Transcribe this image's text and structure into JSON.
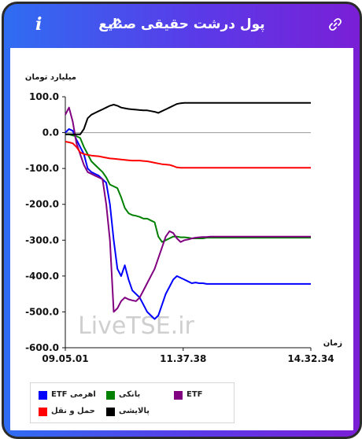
{
  "header": {
    "title": "پول درشت حقیقی صنایع",
    "info_label": "i"
  },
  "chart_data": {
    "type": "line",
    "ylabel": "میلیارد تومان",
    "xlabel": "زمان",
    "watermark": "LiveTSE.ir",
    "ylim": [
      -600,
      100
    ],
    "yticks": [
      100,
      0,
      -100,
      -200,
      -300,
      -400,
      -500,
      -600
    ],
    "ytick_labels": [
      "100.0",
      "0.0",
      "-100.0",
      "-200.0",
      "-300.0",
      "-400.0",
      "-500.0",
      "-600.0"
    ],
    "xlim": [
      "09.05.01",
      "14.32.34"
    ],
    "xticks": [
      "09.05.01",
      "11.37.38",
      "14.32.34"
    ],
    "x": [
      "09.05",
      "09.10",
      "09.15",
      "09.20",
      "09.25",
      "09.30",
      "09.35",
      "09.40",
      "09.45",
      "09.50",
      "09.55",
      "10.00",
      "10.05",
      "10.10",
      "10.15",
      "10.20",
      "10.25",
      "10.30",
      "10.35",
      "10.40",
      "10.45",
      "10.50",
      "10.55",
      "11.00",
      "11.05",
      "11.10",
      "11.15",
      "11.20",
      "11.25",
      "11.30",
      "11.35",
      "11.40",
      "11.45",
      "11.50",
      "11.55",
      "12.00",
      "12.05",
      "12.10",
      "12.15",
      "12.20",
      "12.25",
      "12.30",
      "12.35",
      "12.40",
      "12.45",
      "12.50",
      "12.55",
      "13.00",
      "13.05",
      "13.10",
      "13.15",
      "13.20",
      "13.25",
      "13.30",
      "13.35",
      "13.40",
      "13.45",
      "13.50",
      "13.55",
      "14.00",
      "14.05",
      "14.10",
      "14.15",
      "14.20",
      "14.25",
      "14.30",
      "14.32"
    ],
    "series": [
      {
        "name": "ETF اهرمی",
        "color": "#0000ff",
        "values": [
          0,
          10,
          5,
          -20,
          -40,
          -60,
          -100,
          -110,
          -115,
          -120,
          -130,
          -140,
          -200,
          -300,
          -380,
          -400,
          -370,
          -410,
          -440,
          -450,
          -460,
          -480,
          -500,
          -510,
          -520,
          -510,
          -480,
          -450,
          -430,
          -410,
          -400,
          -405,
          -410,
          -415,
          -420,
          -418,
          -420,
          -420,
          -422,
          -422,
          -422,
          -422,
          -422,
          -422,
          -422,
          -422,
          -422,
          -422,
          -422,
          -422,
          -422,
          -422,
          -422,
          -422,
          -422,
          -422,
          -422,
          -422,
          -422,
          -422,
          -422,
          -422,
          -422,
          -422,
          -422,
          -422,
          -422
        ]
      },
      {
        "name": "بانکی",
        "color": "#008000",
        "values": [
          -5,
          -5,
          -8,
          -10,
          -15,
          -40,
          -60,
          -80,
          -90,
          -100,
          -110,
          -125,
          -145,
          -150,
          -155,
          -180,
          -210,
          -225,
          -230,
          -232,
          -235,
          -240,
          -240,
          -245,
          -250,
          -290,
          -305,
          -300,
          -295,
          -290,
          -290,
          -292,
          -292,
          -293,
          -295,
          -295,
          -295,
          -295,
          -293,
          -293,
          -293,
          -293,
          -293,
          -293,
          -293,
          -293,
          -293,
          -293,
          -293,
          -293,
          -293,
          -293,
          -293,
          -293,
          -293,
          -293,
          -293,
          -293,
          -293,
          -293,
          -293,
          -293,
          -293,
          -293,
          -293,
          -293,
          -293
        ]
      },
      {
        "name": "ETF",
        "color": "#800080",
        "values": [
          50,
          70,
          30,
          -30,
          -60,
          -90,
          -110,
          -115,
          -120,
          -125,
          -130,
          -200,
          -300,
          -500,
          -490,
          -470,
          -460,
          -465,
          -468,
          -470,
          -460,
          -440,
          -420,
          -400,
          -380,
          -350,
          -320,
          -290,
          -275,
          -280,
          -295,
          -305,
          -300,
          -298,
          -295,
          -293,
          -292,
          -291,
          -291,
          -290,
          -290,
          -290,
          -290,
          -290,
          -290,
          -290,
          -290,
          -290,
          -290,
          -290,
          -290,
          -290,
          -290,
          -290,
          -290,
          -290,
          -290,
          -290,
          -290,
          -290,
          -290,
          -290,
          -290,
          -290,
          -290,
          -290,
          -290
        ]
      },
      {
        "name": "حمل و نقل",
        "color": "#ff0000",
        "values": [
          -25,
          -27,
          -30,
          -40,
          -55,
          -60,
          -62,
          -64,
          -65,
          -66,
          -68,
          -70,
          -72,
          -73,
          -74,
          -75,
          -76,
          -77,
          -78,
          -78,
          -78,
          -79,
          -80,
          -82,
          -84,
          -86,
          -88,
          -89,
          -90,
          -93,
          -97,
          -98,
          -98,
          -98,
          -98,
          -98,
          -98,
          -98,
          -98,
          -98,
          -98,
          -98,
          -98,
          -98,
          -98,
          -98,
          -98,
          -98,
          -98,
          -98,
          -98,
          -98,
          -98,
          -98,
          -98,
          -98,
          -98,
          -98,
          -98,
          -98,
          -98,
          -98,
          -98,
          -98,
          -98,
          -98,
          -98
        ]
      },
      {
        "name": "پالایشی",
        "color": "#000000",
        "values": [
          -5,
          -5,
          -5,
          -5,
          -5,
          10,
          40,
          50,
          55,
          60,
          65,
          70,
          75,
          78,
          75,
          70,
          68,
          66,
          65,
          64,
          63,
          62,
          62,
          60,
          58,
          55,
          60,
          65,
          70,
          75,
          80,
          82,
          83,
          83,
          83,
          83,
          83,
          83,
          83,
          83,
          83,
          83,
          83,
          83,
          83,
          83,
          83,
          83,
          83,
          83,
          83,
          83,
          83,
          83,
          83,
          83,
          83,
          83,
          83,
          83,
          83,
          83,
          83,
          83,
          83,
          83,
          83
        ]
      }
    ],
    "legend": {
      "placement": "bottom-left"
    },
    "grid": false
  },
  "colors": {
    "header_gradient_start": "#2f6df2",
    "header_gradient_end": "#7a1fd6",
    "zero_line": "#9a9a9a"
  }
}
